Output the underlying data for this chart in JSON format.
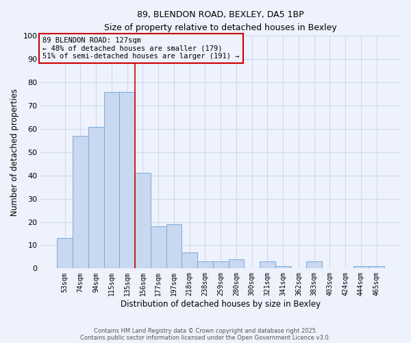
{
  "title_line1": "89, BLENDON ROAD, BEXLEY, DA5 1BP",
  "title_line2": "Size of property relative to detached houses in Bexley",
  "xlabel": "Distribution of detached houses by size in Bexley",
  "ylabel": "Number of detached properties",
  "categories": [
    "53sqm",
    "74sqm",
    "94sqm",
    "115sqm",
    "135sqm",
    "156sqm",
    "177sqm",
    "197sqm",
    "218sqm",
    "238sqm",
    "259sqm",
    "280sqm",
    "300sqm",
    "321sqm",
    "341sqm",
    "362sqm",
    "383sqm",
    "403sqm",
    "424sqm",
    "444sqm",
    "465sqm"
  ],
  "values": [
    13,
    57,
    61,
    76,
    76,
    41,
    18,
    19,
    7,
    3,
    3,
    4,
    0,
    3,
    1,
    0,
    3,
    0,
    0,
    1,
    1
  ],
  "bar_color": "#c8d8f0",
  "bar_edge_color": "#7aaad8",
  "background_color": "#eef2fc",
  "grid_color": "#d0d8ee",
  "annotation_box_color": "#cc0000",
  "annotation_line_color": "#cc0000",
  "property_line_x": 4.5,
  "annotation_text_line1": "89 BLENDON ROAD: 127sqm",
  "annotation_text_line2": "← 48% of detached houses are smaller (179)",
  "annotation_text_line3": "51% of semi-detached houses are larger (191) →",
  "ylim": [
    0,
    100
  ],
  "yticks": [
    0,
    10,
    20,
    30,
    40,
    50,
    60,
    70,
    80,
    90,
    100
  ],
  "footer_line1": "Contains HM Land Registry data © Crown copyright and database right 2025.",
  "footer_line2": "Contains public sector information licensed under the Open Government Licence v3.0."
}
